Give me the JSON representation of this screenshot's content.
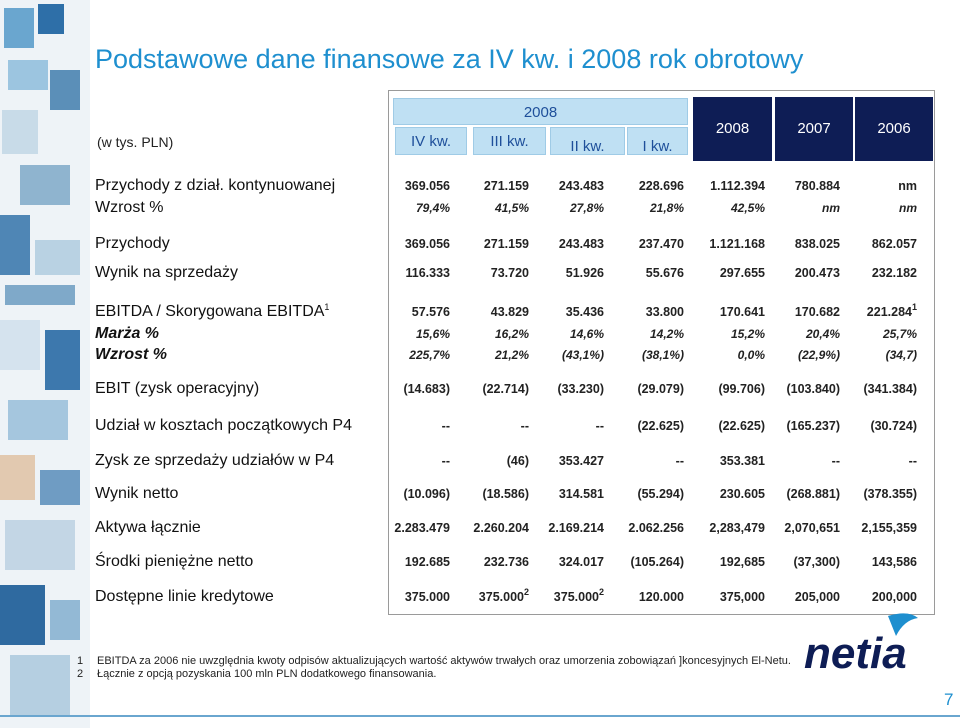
{
  "header": {
    "title": "Podstawowe dane finansowe za IV kw. i 2008 rok obrotowy",
    "unit": "(w tys. PLN)",
    "group": "2008",
    "columns": [
      "IV kw.",
      "III kw.",
      "II kw.",
      "I kw.",
      "2008",
      "2007",
      "2006"
    ]
  },
  "table": {
    "rows": [
      {
        "label": "Przychody z dział. kontynuowanej",
        "cells": [
          "369.056",
          "271.159",
          "243.483",
          "228.696",
          "1.112.394",
          "780.884",
          "nm"
        ]
      },
      {
        "label": "Wzrost %",
        "italic": true,
        "cells": [
          "79,4%",
          "41,5%",
          "27,8%",
          "21,8%",
          "42,5%",
          "nm",
          "nm"
        ]
      },
      {
        "label": "Przychody",
        "cells": [
          "369.056",
          "271.159",
          "243.483",
          "237.470",
          "1.121.168",
          "838.025",
          "862.057"
        ]
      },
      {
        "label": "Wynik na sprzedaży",
        "cells": [
          "116.333",
          "73.720",
          "51.926",
          "55.676",
          "297.655",
          "200.473",
          "232.182"
        ]
      },
      {
        "label": "EBITDA / Skorygowana EBITDA",
        "label_note": "1",
        "cells": [
          "57.576",
          "43.829",
          "35.436",
          "33.800",
          "170.641",
          "170.682",
          {
            "text": "221.284",
            "note": "1"
          }
        ]
      },
      {
        "label": "Marża %",
        "italic": true,
        "label_italic": true,
        "cells": [
          "15,6%",
          "16,2%",
          "14,6%",
          "14,2%",
          "15,2%",
          "20,4%",
          "25,7%"
        ]
      },
      {
        "label": "Wzrost %",
        "italic": true,
        "label_italic": true,
        "cells": [
          "225,7%",
          "21,2%",
          "(43,1%)",
          "(38,1%)",
          "0,0%",
          "(22,9%)",
          "(34,7)"
        ]
      },
      {
        "label": "EBIT (zysk operacyjny)",
        "cells": [
          "(14.683)",
          "(22.714)",
          "(33.230)",
          "(29.079)",
          "(99.706)",
          "(103.840)",
          "(341.384)"
        ]
      },
      {
        "label": "Udział w kosztach początkowych P4",
        "cells": [
          "--",
          "--",
          "--",
          "(22.625)",
          "(22.625)",
          "(165.237)",
          "(30.724)"
        ]
      },
      {
        "label": "Zysk ze sprzedaży udziałów w P4",
        "cells": [
          "--",
          "(46)",
          "353.427",
          "--",
          "353.381",
          "--",
          "--"
        ]
      },
      {
        "label": "Wynik netto",
        "cells": [
          "(10.096)",
          "(18.586)",
          "314.581",
          "(55.294)",
          "230.605",
          "(268.881)",
          "(378.355)"
        ]
      },
      {
        "label": "Aktywa łącznie",
        "cells": [
          "2.283.479",
          "2.260.204",
          "2.169.214",
          "2.062.256",
          "2,283,479",
          "2,070,651",
          "2,155,359"
        ]
      },
      {
        "label": "Środki pieniężne netto",
        "cells": [
          "192.685",
          "232.736",
          "324.017",
          "(105.264)",
          "192,685",
          "(37,300)",
          "143,586"
        ]
      },
      {
        "label": "Dostępne linie kredytowe",
        "cells": [
          "375.000",
          {
            "text": "375.000",
            "note": "2"
          },
          {
            "text": "375.000",
            "note": "2"
          },
          "120.000",
          "375,000",
          "205,000",
          "200,000"
        ]
      }
    ]
  },
  "footnotes": [
    {
      "number": "1",
      "text": "EBITDA za 2006 nie uwzględnia kwoty odpisów aktualizujących wartość aktywów trwałych oraz umorzenia zobowiązań ]koncesyjnych El-Netu."
    },
    {
      "number": "2",
      "text": "Łącznie z opcją pozyskania 100 mln PLN dodatkowego finansowania."
    }
  ],
  "logo": "netia",
  "page_number": "7"
}
